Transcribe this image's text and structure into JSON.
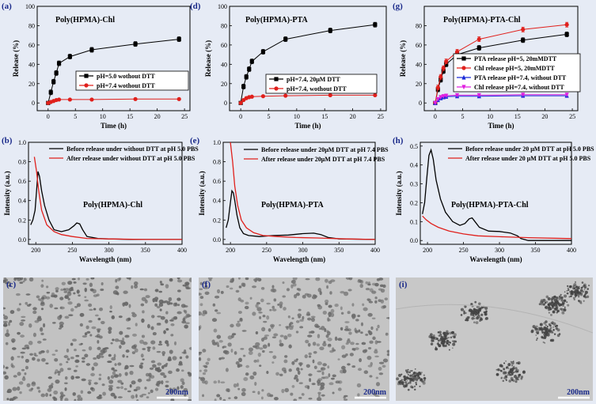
{
  "chart_data": [
    {
      "id": "a",
      "panel_label": "(a)",
      "type": "line",
      "title": "Poly(HPMA)-Chl",
      "xlabel": "Time (h)",
      "ylabel": "Release (%)",
      "xlim": [
        -2,
        26
      ],
      "ylim": [
        -8,
        100
      ],
      "xticks": [
        0,
        5,
        10,
        15,
        20,
        25
      ],
      "yticks": [
        0,
        20,
        40,
        60,
        80,
        100
      ],
      "legend_position": "center-right",
      "series": [
        {
          "name": "pH=5.0 wothout DTT",
          "color": "#000000",
          "marker": "square",
          "error": true,
          "x": [
            0,
            0.5,
            1,
            1.5,
            2,
            4,
            8,
            16,
            24
          ],
          "y": [
            0,
            11,
            22,
            31,
            41,
            48,
            55,
            61,
            66
          ]
        },
        {
          "name": "pH=7.4 wothout DTT",
          "color": "#e0201c",
          "marker": "circle",
          "error": false,
          "x": [
            0,
            0.5,
            1,
            1.5,
            2,
            4,
            8,
            16,
            24
          ],
          "y": [
            0,
            1,
            2,
            3,
            3.5,
            3.5,
            3.5,
            4,
            4
          ]
        }
      ]
    },
    {
      "id": "d",
      "panel_label": "(d)",
      "type": "line",
      "title": "Poly(HPMA)-PTA",
      "xlabel": "Time (h)",
      "ylabel": "Release (%)",
      "xlim": [
        -2,
        26
      ],
      "ylim": [
        -8,
        100
      ],
      "xticks": [
        0,
        5,
        10,
        15,
        20,
        25
      ],
      "yticks": [
        0,
        20,
        40,
        60,
        80,
        100
      ],
      "legend_position": "center-right",
      "series": [
        {
          "name": "pH=7.4, 20μM DTT",
          "color": "#000000",
          "marker": "square",
          "error": true,
          "x": [
            0,
            0.5,
            1,
            1.5,
            2,
            4,
            8,
            16,
            24
          ],
          "y": [
            0,
            17,
            27,
            35,
            43,
            53,
            66,
            75,
            81
          ]
        },
        {
          "name": "pH=7.4, wothout DTT",
          "color": "#e0201c",
          "marker": "circle",
          "error": false,
          "x": [
            0,
            0.5,
            1,
            1.5,
            2,
            4,
            8,
            16,
            24
          ],
          "y": [
            0,
            3,
            5,
            6,
            6.5,
            7,
            7.5,
            8,
            8
          ]
        }
      ]
    },
    {
      "id": "g",
      "panel_label": "(g)",
      "type": "line",
      "title": "Poly(HPMA)-PTA-Chl",
      "xlabel": "Time (h)",
      "ylabel": "Release (%)",
      "xlim": [
        -2,
        26
      ],
      "ylim": [
        -8,
        100
      ],
      "xticks": [
        0,
        5,
        10,
        15,
        20,
        25
      ],
      "yticks": [
        0,
        20,
        40,
        60,
        80
      ],
      "legend_position": "center-right",
      "series": [
        {
          "name": "PTA release pH=5, 20mMDTT",
          "color": "#000000",
          "marker": "square",
          "error": true,
          "x": [
            0,
            0.5,
            1,
            1.5,
            2,
            4,
            8,
            16,
            24
          ],
          "y": [
            0,
            14,
            24,
            33,
            40,
            50,
            57,
            65,
            71
          ]
        },
        {
          "name": "Chl   release pH=5, 20mMDTT",
          "color": "#e0201c",
          "marker": "circle",
          "error": true,
          "x": [
            0,
            0.5,
            1,
            1.5,
            2,
            4,
            8,
            16,
            24
          ],
          "y": [
            0,
            16,
            27,
            36,
            43,
            53,
            66,
            76,
            81
          ]
        },
        {
          "name": "PTA  release pH=7.4, without DTT",
          "color": "#1a2ad8",
          "marker": "triangle",
          "error": false,
          "x": [
            0,
            0.5,
            1,
            1.5,
            2,
            4,
            8,
            16,
            24
          ],
          "y": [
            0,
            3,
            5,
            6,
            6.5,
            7,
            7,
            7.5,
            7.5
          ]
        },
        {
          "name": "Chl   release pH=7.4, without DTT",
          "color": "#e020e0",
          "marker": "triangle-down",
          "error": false,
          "x": [
            0,
            0.5,
            1,
            1.5,
            2,
            4,
            8,
            16,
            24
          ],
          "y": [
            0,
            4,
            6,
            7,
            7.5,
            8,
            8,
            8.5,
            8.5
          ]
        }
      ]
    },
    {
      "id": "b",
      "panel_label": "(b)",
      "type": "line",
      "title": "Poly(HPMA)-Chl",
      "xlabel": "Wavelength (nm)",
      "ylabel": "Intensity (a.u.)",
      "xlim": [
        190,
        400
      ],
      "ylim": [
        -0.05,
        1.0
      ],
      "xticks": [
        200,
        250,
        300,
        350,
        400
      ],
      "yticks": [
        0.0,
        0.2,
        0.4,
        0.6,
        0.8,
        1.0
      ],
      "legend_position": "top-right",
      "series": [
        {
          "name": "Before release under without DTT at pH 5.0 PBS",
          "color": "#000000",
          "x": [
            193,
            196,
            199,
            201,
            203,
            205,
            208,
            212,
            218,
            225,
            235,
            245,
            252,
            256,
            260,
            264,
            270,
            285,
            300,
            330,
            360,
            400
          ],
          "y": [
            0.15,
            0.2,
            0.3,
            0.5,
            0.7,
            0.65,
            0.5,
            0.35,
            0.2,
            0.1,
            0.08,
            0.1,
            0.14,
            0.17,
            0.16,
            0.1,
            0.03,
            0.01,
            0.005,
            0.0,
            0.0,
            0.0
          ]
        },
        {
          "name": "After release under without DTT at pH 5.0 PBS",
          "color": "#e0201c",
          "x": [
            198,
            201,
            204,
            208,
            215,
            225,
            235,
            250,
            270,
            300,
            350,
            400
          ],
          "y": [
            0.85,
            0.7,
            0.5,
            0.3,
            0.15,
            0.08,
            0.05,
            0.03,
            0.01,
            0.005,
            0.0,
            0.0
          ]
        }
      ]
    },
    {
      "id": "e",
      "panel_label": "(e)",
      "type": "line",
      "title": "Poly(HPMA)-PTA",
      "xlabel": "Wavelength (nm)",
      "ylabel": "Intensity (a.u.)",
      "xlim": [
        190,
        400
      ],
      "ylim": [
        -0.05,
        1.0
      ],
      "xticks": [
        200,
        250,
        300,
        350,
        400
      ],
      "yticks": [
        0.0,
        0.2,
        0.4,
        0.6,
        0.8,
        1.0
      ],
      "legend_position": "top-right",
      "series": [
        {
          "name": "Before release under 20μM DTT at pH 7.4 PBS",
          "color": "#000000",
          "x": [
            194,
            197,
            200,
            202,
            204,
            206,
            209,
            213,
            218,
            225,
            240,
            260,
            280,
            300,
            315,
            325,
            335,
            350,
            400
          ],
          "y": [
            0.12,
            0.2,
            0.38,
            0.5,
            0.48,
            0.4,
            0.25,
            0.12,
            0.06,
            0.04,
            0.03,
            0.04,
            0.045,
            0.06,
            0.065,
            0.05,
            0.02,
            0.005,
            0.0
          ]
        },
        {
          "name": "After release under 20μM DTT at pH 7.4 PBS",
          "color": "#e0201c",
          "x": [
            200,
            203,
            206,
            210,
            215,
            222,
            232,
            245,
            265,
            290,
            320,
            340,
            360,
            400
          ],
          "y": [
            1.0,
            0.8,
            0.55,
            0.35,
            0.2,
            0.12,
            0.07,
            0.04,
            0.03,
            0.02,
            0.015,
            0.01,
            0.005,
            0.0
          ]
        }
      ]
    },
    {
      "id": "h",
      "panel_label": "(h)",
      "type": "line",
      "title": "Poly(HPMA)-PTA-Chl",
      "xlabel": "Wavelength (nm)",
      "ylabel": "Intensity (a.u.)",
      "xlim": [
        190,
        400
      ],
      "ylim": [
        -0.02,
        0.52
      ],
      "xticks": [
        200,
        250,
        300,
        350,
        400
      ],
      "yticks": [
        0.0,
        0.1,
        0.2,
        0.3,
        0.4,
        0.5
      ],
      "legend_position": "top-right",
      "series": [
        {
          "name": "Before release under 20 μM DTT at pH 5.0 PBS",
          "color": "#000000",
          "x": [
            193,
            196,
            199,
            202,
            205,
            208,
            212,
            218,
            225,
            235,
            245,
            252,
            258,
            262,
            266,
            272,
            285,
            300,
            315,
            325,
            330,
            340,
            400
          ],
          "y": [
            0.14,
            0.2,
            0.33,
            0.45,
            0.48,
            0.43,
            0.32,
            0.22,
            0.15,
            0.1,
            0.08,
            0.09,
            0.115,
            0.12,
            0.1,
            0.07,
            0.05,
            0.048,
            0.04,
            0.025,
            0.01,
            0.0,
            0.0
          ]
        },
        {
          "name": "After release under 20 μM DTT at pH 5.0 PBS",
          "color": "#e0201c",
          "x": [
            193,
            198,
            205,
            215,
            230,
            250,
            270,
            300,
            340,
            400
          ],
          "y": [
            0.13,
            0.11,
            0.09,
            0.07,
            0.05,
            0.035,
            0.025,
            0.02,
            0.015,
            0.01
          ]
        }
      ]
    }
  ],
  "micrographs": [
    {
      "id": "c",
      "panel_label": "(c)",
      "scale_bar": "200nm"
    },
    {
      "id": "f",
      "panel_label": "(f)",
      "scale_bar": "200nm"
    },
    {
      "id": "i",
      "panel_label": "(i)",
      "scale_bar": "200nm"
    }
  ],
  "colors": {
    "background": "#e6ebf5",
    "label_blue": "#1a2a8a",
    "black": "#000000",
    "red": "#e0201c",
    "blue": "#1a2ad8",
    "magenta": "#e020e0"
  }
}
